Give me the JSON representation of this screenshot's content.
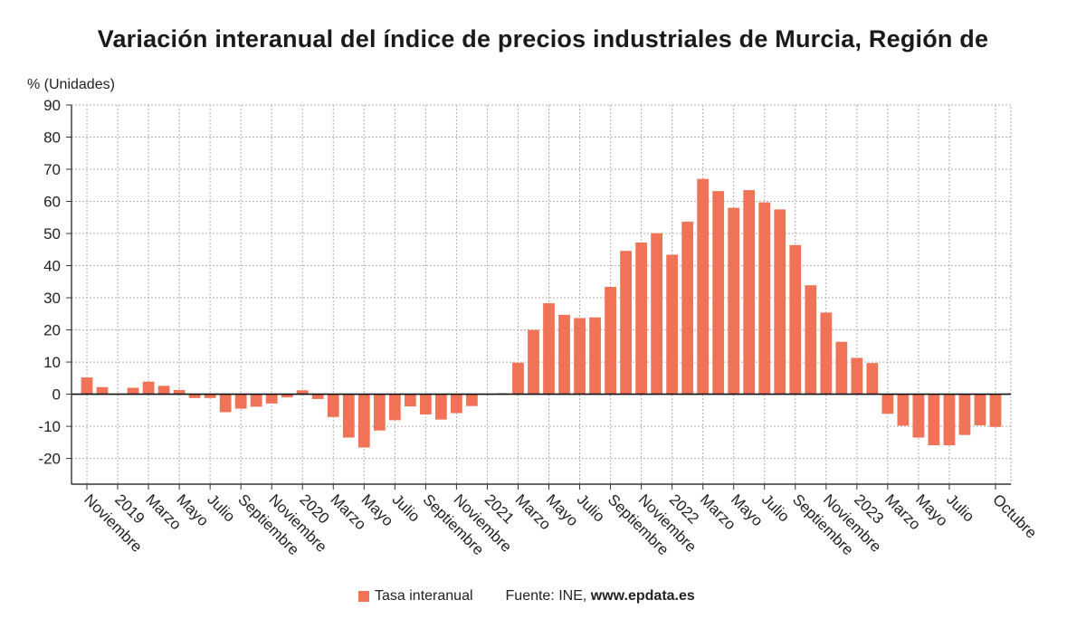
{
  "title": "Variación interanual del índice de precios industriales de Murcia, Región de",
  "legend_label": "Tasa interanual",
  "source_prefix": "Fuente: INE, ",
  "source_site": "www.epdata.es",
  "colors": {
    "bar": "#f07257",
    "grid": "#b0b0b0",
    "axis": "#333333"
  },
  "chart_data": {
    "type": "bar",
    "ylabel": "% (Unidades)",
    "ylim": [
      -28,
      90
    ],
    "yticks": [
      -20,
      -10,
      0,
      10,
      20,
      30,
      40,
      50,
      60,
      70,
      80,
      90
    ],
    "grid": true,
    "legend_position": "bottom",
    "categories": [
      "2018-11",
      "2018-12",
      "2019-01",
      "2019-02",
      "2019-03",
      "2019-04",
      "2019-05",
      "2019-06",
      "2019-07",
      "2019-08",
      "2019-09",
      "2019-10",
      "2019-11",
      "2019-12",
      "2020-01",
      "2020-02",
      "2020-03",
      "2020-04",
      "2020-05",
      "2020-06",
      "2020-07",
      "2020-08",
      "2020-09",
      "2020-10",
      "2020-11",
      "2020-12",
      "2021-01",
      "2021-02",
      "2021-03",
      "2021-04",
      "2021-05",
      "2021-06",
      "2021-07",
      "2021-08",
      "2021-09",
      "2021-10",
      "2021-11",
      "2021-12",
      "2022-01",
      "2022-02",
      "2022-03",
      "2022-04",
      "2022-05",
      "2022-06",
      "2022-07",
      "2022-08",
      "2022-09",
      "2022-10",
      "2022-11",
      "2022-12",
      "2023-01",
      "2023-02",
      "2023-03",
      "2023-04",
      "2023-05",
      "2023-06",
      "2023-07",
      "2023-08",
      "2023-09",
      "2023-10"
    ],
    "tick_labels": [
      {
        "index": 0,
        "label": "Noviembre"
      },
      {
        "index": 2,
        "label": "2019"
      },
      {
        "index": 4,
        "label": "Marzo"
      },
      {
        "index": 6,
        "label": "Mayo"
      },
      {
        "index": 8,
        "label": "Julio"
      },
      {
        "index": 10,
        "label": "Septiembre"
      },
      {
        "index": 12,
        "label": "Noviembre"
      },
      {
        "index": 14,
        "label": "2020"
      },
      {
        "index": 16,
        "label": "Marzo"
      },
      {
        "index": 18,
        "label": "Mayo"
      },
      {
        "index": 20,
        "label": "Julio"
      },
      {
        "index": 22,
        "label": "Septiembre"
      },
      {
        "index": 24,
        "label": "Noviembre"
      },
      {
        "index": 26,
        "label": "2021"
      },
      {
        "index": 28,
        "label": "Marzo"
      },
      {
        "index": 30,
        "label": "Mayo"
      },
      {
        "index": 32,
        "label": "Julio"
      },
      {
        "index": 34,
        "label": "Septiembre"
      },
      {
        "index": 36,
        "label": "Noviembre"
      },
      {
        "index": 38,
        "label": "2022"
      },
      {
        "index": 40,
        "label": "Marzo"
      },
      {
        "index": 42,
        "label": "Mayo"
      },
      {
        "index": 44,
        "label": "Julio"
      },
      {
        "index": 46,
        "label": "Septiembre"
      },
      {
        "index": 48,
        "label": "Noviembre"
      },
      {
        "index": 50,
        "label": "2023"
      },
      {
        "index": 52,
        "label": "Marzo"
      },
      {
        "index": 54,
        "label": "Mayo"
      },
      {
        "index": 56,
        "label": "Julio"
      },
      {
        "index": 59,
        "label": "Octubre"
      }
    ],
    "series": [
      {
        "name": "Tasa interanual",
        "values": [
          5.2,
          2.2,
          0.2,
          2.0,
          3.9,
          2.6,
          1.3,
          -1.2,
          -1.2,
          -5.6,
          -4.5,
          -3.9,
          -2.9,
          -1.0,
          1.2,
          -1.5,
          -7.1,
          -13.5,
          -16.6,
          -11.3,
          -8.1,
          -3.8,
          -6.3,
          -7.9,
          -5.9,
          -3.7,
          -0.2,
          0.3,
          9.8,
          20.0,
          28.3,
          24.7,
          23.7,
          23.9,
          33.4,
          44.6,
          47.2,
          50.1,
          43.4,
          53.7,
          67.0,
          63.2,
          58.0,
          63.5,
          59.7,
          57.5,
          46.4,
          33.9,
          25.4,
          16.3,
          11.3,
          9.7,
          -6.1,
          -9.8,
          -13.5,
          -15.9,
          -15.9,
          -12.7,
          -9.7,
          -10.2
        ]
      }
    ]
  }
}
